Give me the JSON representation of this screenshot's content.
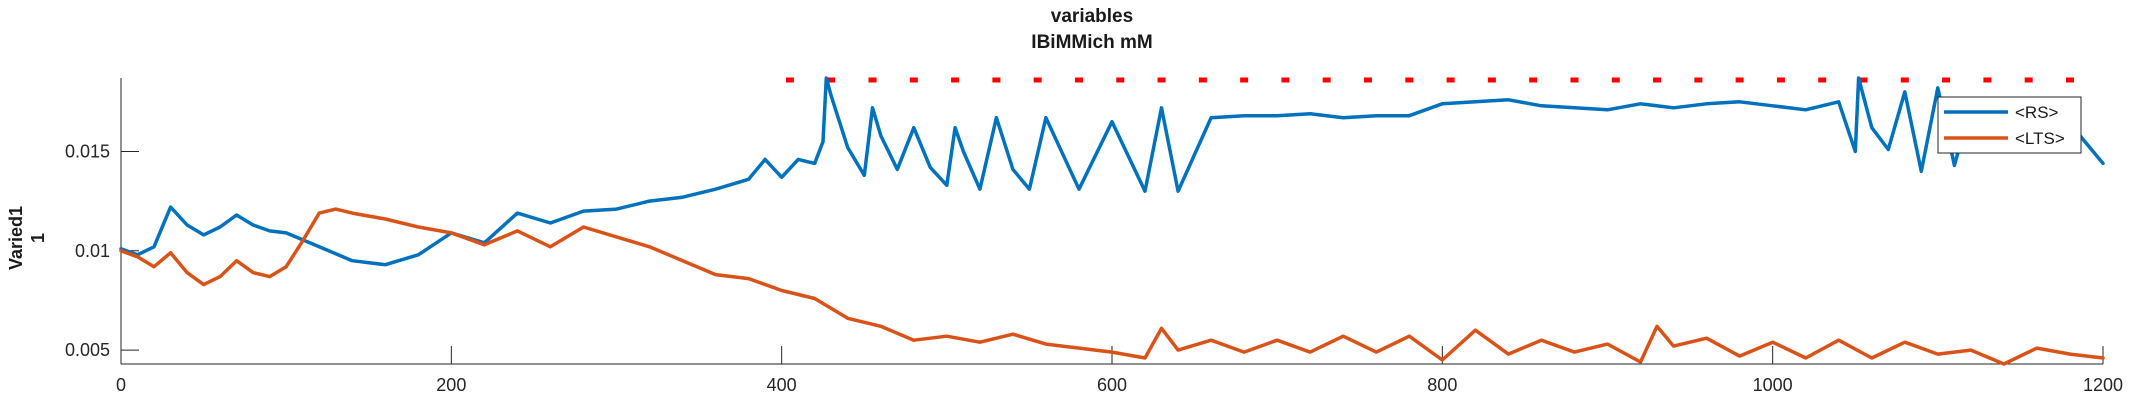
{
  "chart_data": {
    "type": "line",
    "title": [
      "variables",
      "IBiMMich mM"
    ],
    "xlabel": "",
    "ylabel": [
      "Varied1",
      "1"
    ],
    "xlim": [
      0,
      1200
    ],
    "ylim": [
      0.0043,
      0.0187
    ],
    "x_ticks": [
      0,
      200,
      400,
      600,
      800,
      1000,
      1200
    ],
    "x_tick_labels": [
      "0",
      "200",
      "400",
      "600",
      "800",
      "1000",
      "1200"
    ],
    "y_ticks": [
      0.005,
      0.01,
      0.015
    ],
    "y_tick_labels": [
      "0.005",
      "0.01",
      "0.015"
    ],
    "grid": false,
    "legend_position": "top-right",
    "series": [
      {
        "name": "<RS>",
        "color": "#0072BD",
        "x": [
          0,
          10,
          20,
          30,
          40,
          50,
          60,
          70,
          80,
          90,
          100,
          120,
          140,
          160,
          180,
          200,
          220,
          240,
          260,
          280,
          300,
          320,
          340,
          360,
          380,
          390,
          400,
          410,
          420,
          425,
          427,
          430,
          440,
          450,
          455,
          460,
          470,
          480,
          490,
          500,
          505,
          510,
          520,
          530,
          540,
          550,
          560,
          580,
          600,
          620,
          630,
          640,
          660,
          680,
          700,
          720,
          740,
          760,
          780,
          800,
          820,
          840,
          860,
          880,
          900,
          920,
          940,
          960,
          980,
          1000,
          1020,
          1040,
          1050,
          1052,
          1060,
          1070,
          1080,
          1090,
          1100,
          1110,
          1120,
          1140,
          1160,
          1180,
          1200
        ],
        "y": [
          0.0101,
          0.0098,
          0.0102,
          0.0122,
          0.0113,
          0.0108,
          0.0112,
          0.0118,
          0.0113,
          0.011,
          0.0109,
          0.0102,
          0.0095,
          0.0093,
          0.0098,
          0.0109,
          0.0104,
          0.0119,
          0.0114,
          0.012,
          0.0121,
          0.0125,
          0.0127,
          0.0131,
          0.0136,
          0.0146,
          0.0137,
          0.0146,
          0.0144,
          0.0155,
          0.0187,
          0.0178,
          0.0152,
          0.0138,
          0.0172,
          0.0158,
          0.0141,
          0.0162,
          0.0142,
          0.0133,
          0.0162,
          0.015,
          0.0131,
          0.0167,
          0.0141,
          0.0131,
          0.0167,
          0.0131,
          0.0165,
          0.013,
          0.0172,
          0.013,
          0.0167,
          0.0168,
          0.0168,
          0.0169,
          0.0167,
          0.0168,
          0.0168,
          0.0174,
          0.0175,
          0.0176,
          0.0173,
          0.0172,
          0.0171,
          0.0174,
          0.0172,
          0.0174,
          0.0175,
          0.0173,
          0.0171,
          0.0175,
          0.015,
          0.0187,
          0.0162,
          0.0151,
          0.018,
          0.014,
          0.0182,
          0.0143,
          0.0173,
          0.0167,
          0.0166,
          0.0164,
          0.0144
        ]
      },
      {
        "name": "<LTS>",
        "color": "#D95319",
        "x": [
          0,
          10,
          20,
          30,
          40,
          50,
          60,
          70,
          80,
          90,
          100,
          110,
          120,
          130,
          140,
          160,
          180,
          200,
          220,
          240,
          260,
          280,
          300,
          320,
          340,
          360,
          380,
          400,
          420,
          440,
          460,
          480,
          500,
          520,
          540,
          560,
          580,
          600,
          620,
          630,
          640,
          660,
          680,
          700,
          720,
          740,
          760,
          780,
          800,
          820,
          840,
          860,
          880,
          900,
          920,
          930,
          940,
          960,
          980,
          1000,
          1020,
          1040,
          1060,
          1080,
          1100,
          1120,
          1140,
          1160,
          1180,
          1200
        ],
        "y": [
          0.01,
          0.0097,
          0.0092,
          0.0099,
          0.0089,
          0.0083,
          0.0087,
          0.0095,
          0.0089,
          0.0087,
          0.0092,
          0.0105,
          0.0119,
          0.0121,
          0.0119,
          0.0116,
          0.0112,
          0.0109,
          0.0103,
          0.011,
          0.0102,
          0.0112,
          0.0107,
          0.0102,
          0.0095,
          0.0088,
          0.0086,
          0.008,
          0.0076,
          0.0066,
          0.0062,
          0.0055,
          0.0057,
          0.0054,
          0.0058,
          0.0053,
          0.0051,
          0.0049,
          0.0046,
          0.0061,
          0.005,
          0.0055,
          0.0049,
          0.0055,
          0.0049,
          0.0057,
          0.0049,
          0.0057,
          0.0045,
          0.006,
          0.0048,
          0.0055,
          0.0049,
          0.0053,
          0.0044,
          0.0062,
          0.0052,
          0.0056,
          0.0047,
          0.0054,
          0.0046,
          0.0055,
          0.0046,
          0.0054,
          0.0048,
          0.005,
          0.0043,
          0.0051,
          0.0048,
          0.0046
        ]
      }
    ],
    "marker_series": {
      "color": "#FF0000",
      "y": 0.0186,
      "x": [
        405,
        430,
        455,
        480,
        505,
        530,
        555,
        580,
        605,
        630,
        655,
        680,
        705,
        730,
        755,
        780,
        805,
        830,
        855,
        880,
        905,
        930,
        955,
        980,
        1005,
        1030,
        1055,
        1080,
        1105,
        1130,
        1155,
        1180
      ]
    }
  }
}
